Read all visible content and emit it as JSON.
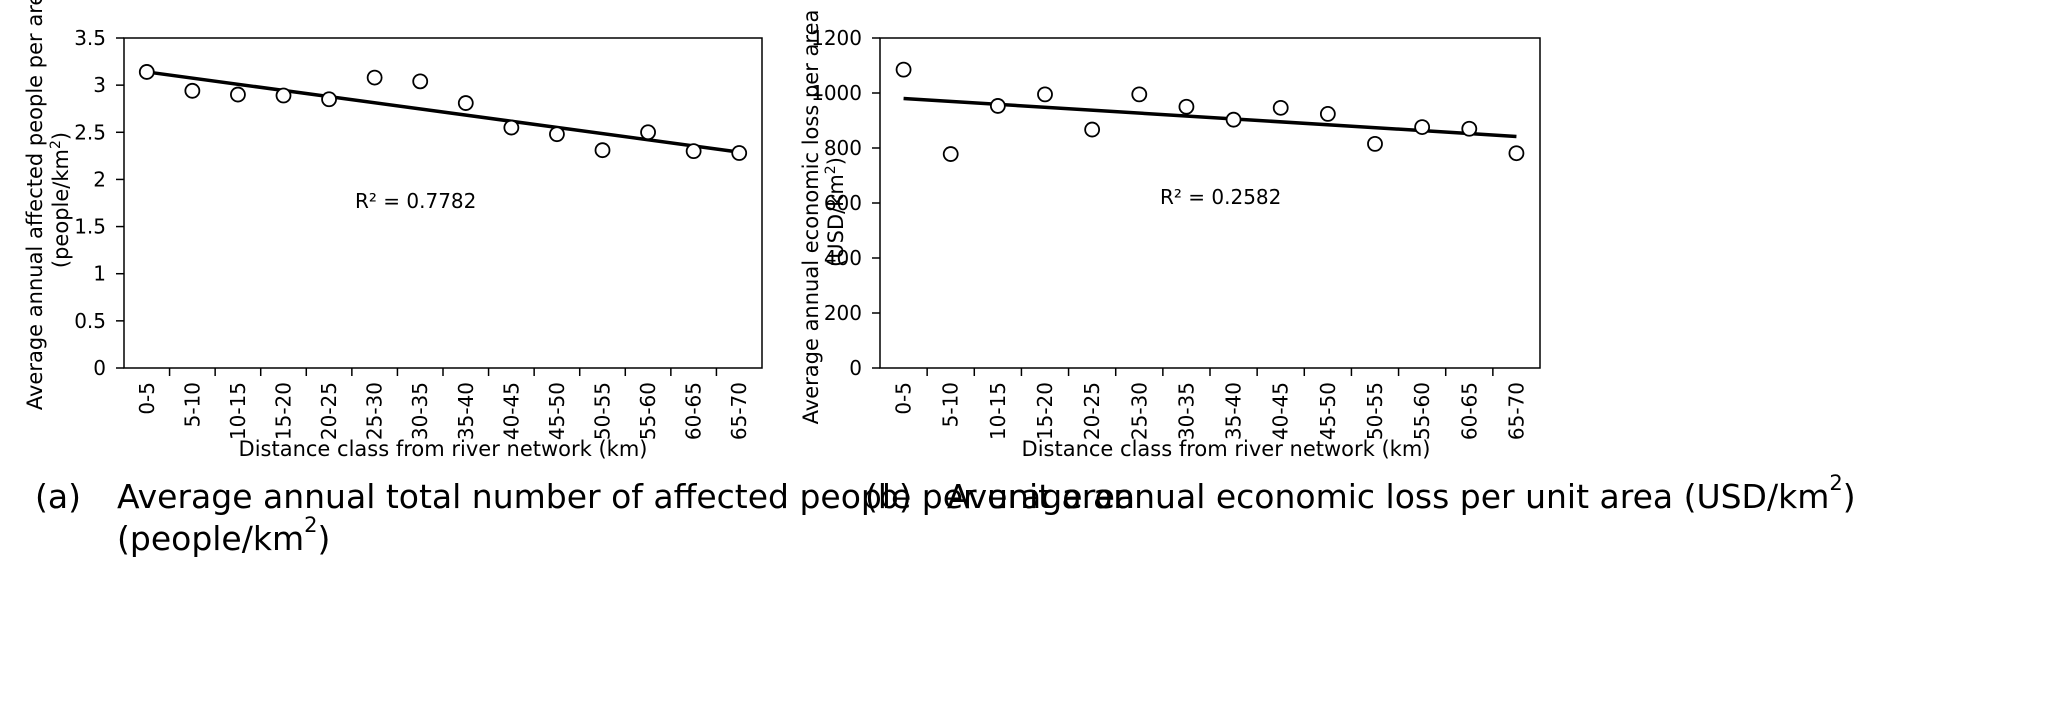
{
  "chart_data": [
    {
      "type": "scatter",
      "categories": [
        "0-5",
        "5-10",
        "10-15",
        "15-20",
        "20-25",
        "25-30",
        "30-35",
        "35-40",
        "40-45",
        "45-50",
        "50-55",
        "55-60",
        "60-65",
        "65-70"
      ],
      "series": [
        {
          "values": [
            3.14,
            2.94,
            2.9,
            2.89,
            2.85,
            3.08,
            3.04,
            2.81,
            2.55,
            2.48,
            2.31,
            2.5,
            2.3,
            2.28
          ]
        }
      ],
      "trendline": {
        "start": 3.14,
        "end": 2.29
      },
      "annotation": "R² = 0.7782",
      "xlabel": "Distance class from river network (km)",
      "ylabel_line1": "Average annual affected people per area",
      "ylabel_line2_prefix": "(people/km",
      "ylabel_line2_sup": "2",
      "ylabel_line2_suffix": ")",
      "yticks": [
        "0",
        "0.5",
        "1",
        "1.5",
        "2",
        "2.5",
        "3",
        "3.5"
      ],
      "ylim": [
        0,
        3.5
      ],
      "grid": false,
      "legend": "none",
      "marker_color": "#000000",
      "line_color": "#000000"
    },
    {
      "type": "scatter",
      "categories": [
        "0-5",
        "5-10",
        "10-15",
        "15-20",
        "20-25",
        "25-30",
        "30-35",
        "35-40",
        "40-45",
        "45-50",
        "50-55",
        "55-60",
        "60-65",
        "65-70"
      ],
      "series": [
        {
          "values": [
            1085,
            778,
            953,
            995,
            867,
            995,
            950,
            903,
            946,
            924,
            815,
            876,
            870,
            781
          ]
        }
      ],
      "trendline": {
        "start": 980,
        "end": 842
      },
      "annotation": "R² = 0.2582",
      "xlabel": "Distance class from river network (km)",
      "ylabel_line1": "Average annual economic loss per area",
      "ylabel_line2_prefix": "(USD/km",
      "ylabel_line2_sup": "2",
      "ylabel_line2_suffix": ")",
      "yticks": [
        "0",
        "200",
        "400",
        "600",
        "800",
        "1000",
        "1200"
      ],
      "ylim": [
        0,
        1200
      ],
      "grid": false,
      "legend": "none",
      "marker_color": "#000000",
      "line_color": "#000000"
    }
  ],
  "captions": {
    "a": {
      "prefix": "(a)",
      "line1": "Average annual total number of affected people per unit area",
      "line2_prefix": "(people/km",
      "line2_sup": "2",
      "line2_suffix": ")"
    },
    "b": {
      "prefix": "(b)",
      "text_prefix": "Average annual economic loss per unit area (USD/km",
      "text_sup": "2",
      "text_suffix": ")"
    }
  }
}
